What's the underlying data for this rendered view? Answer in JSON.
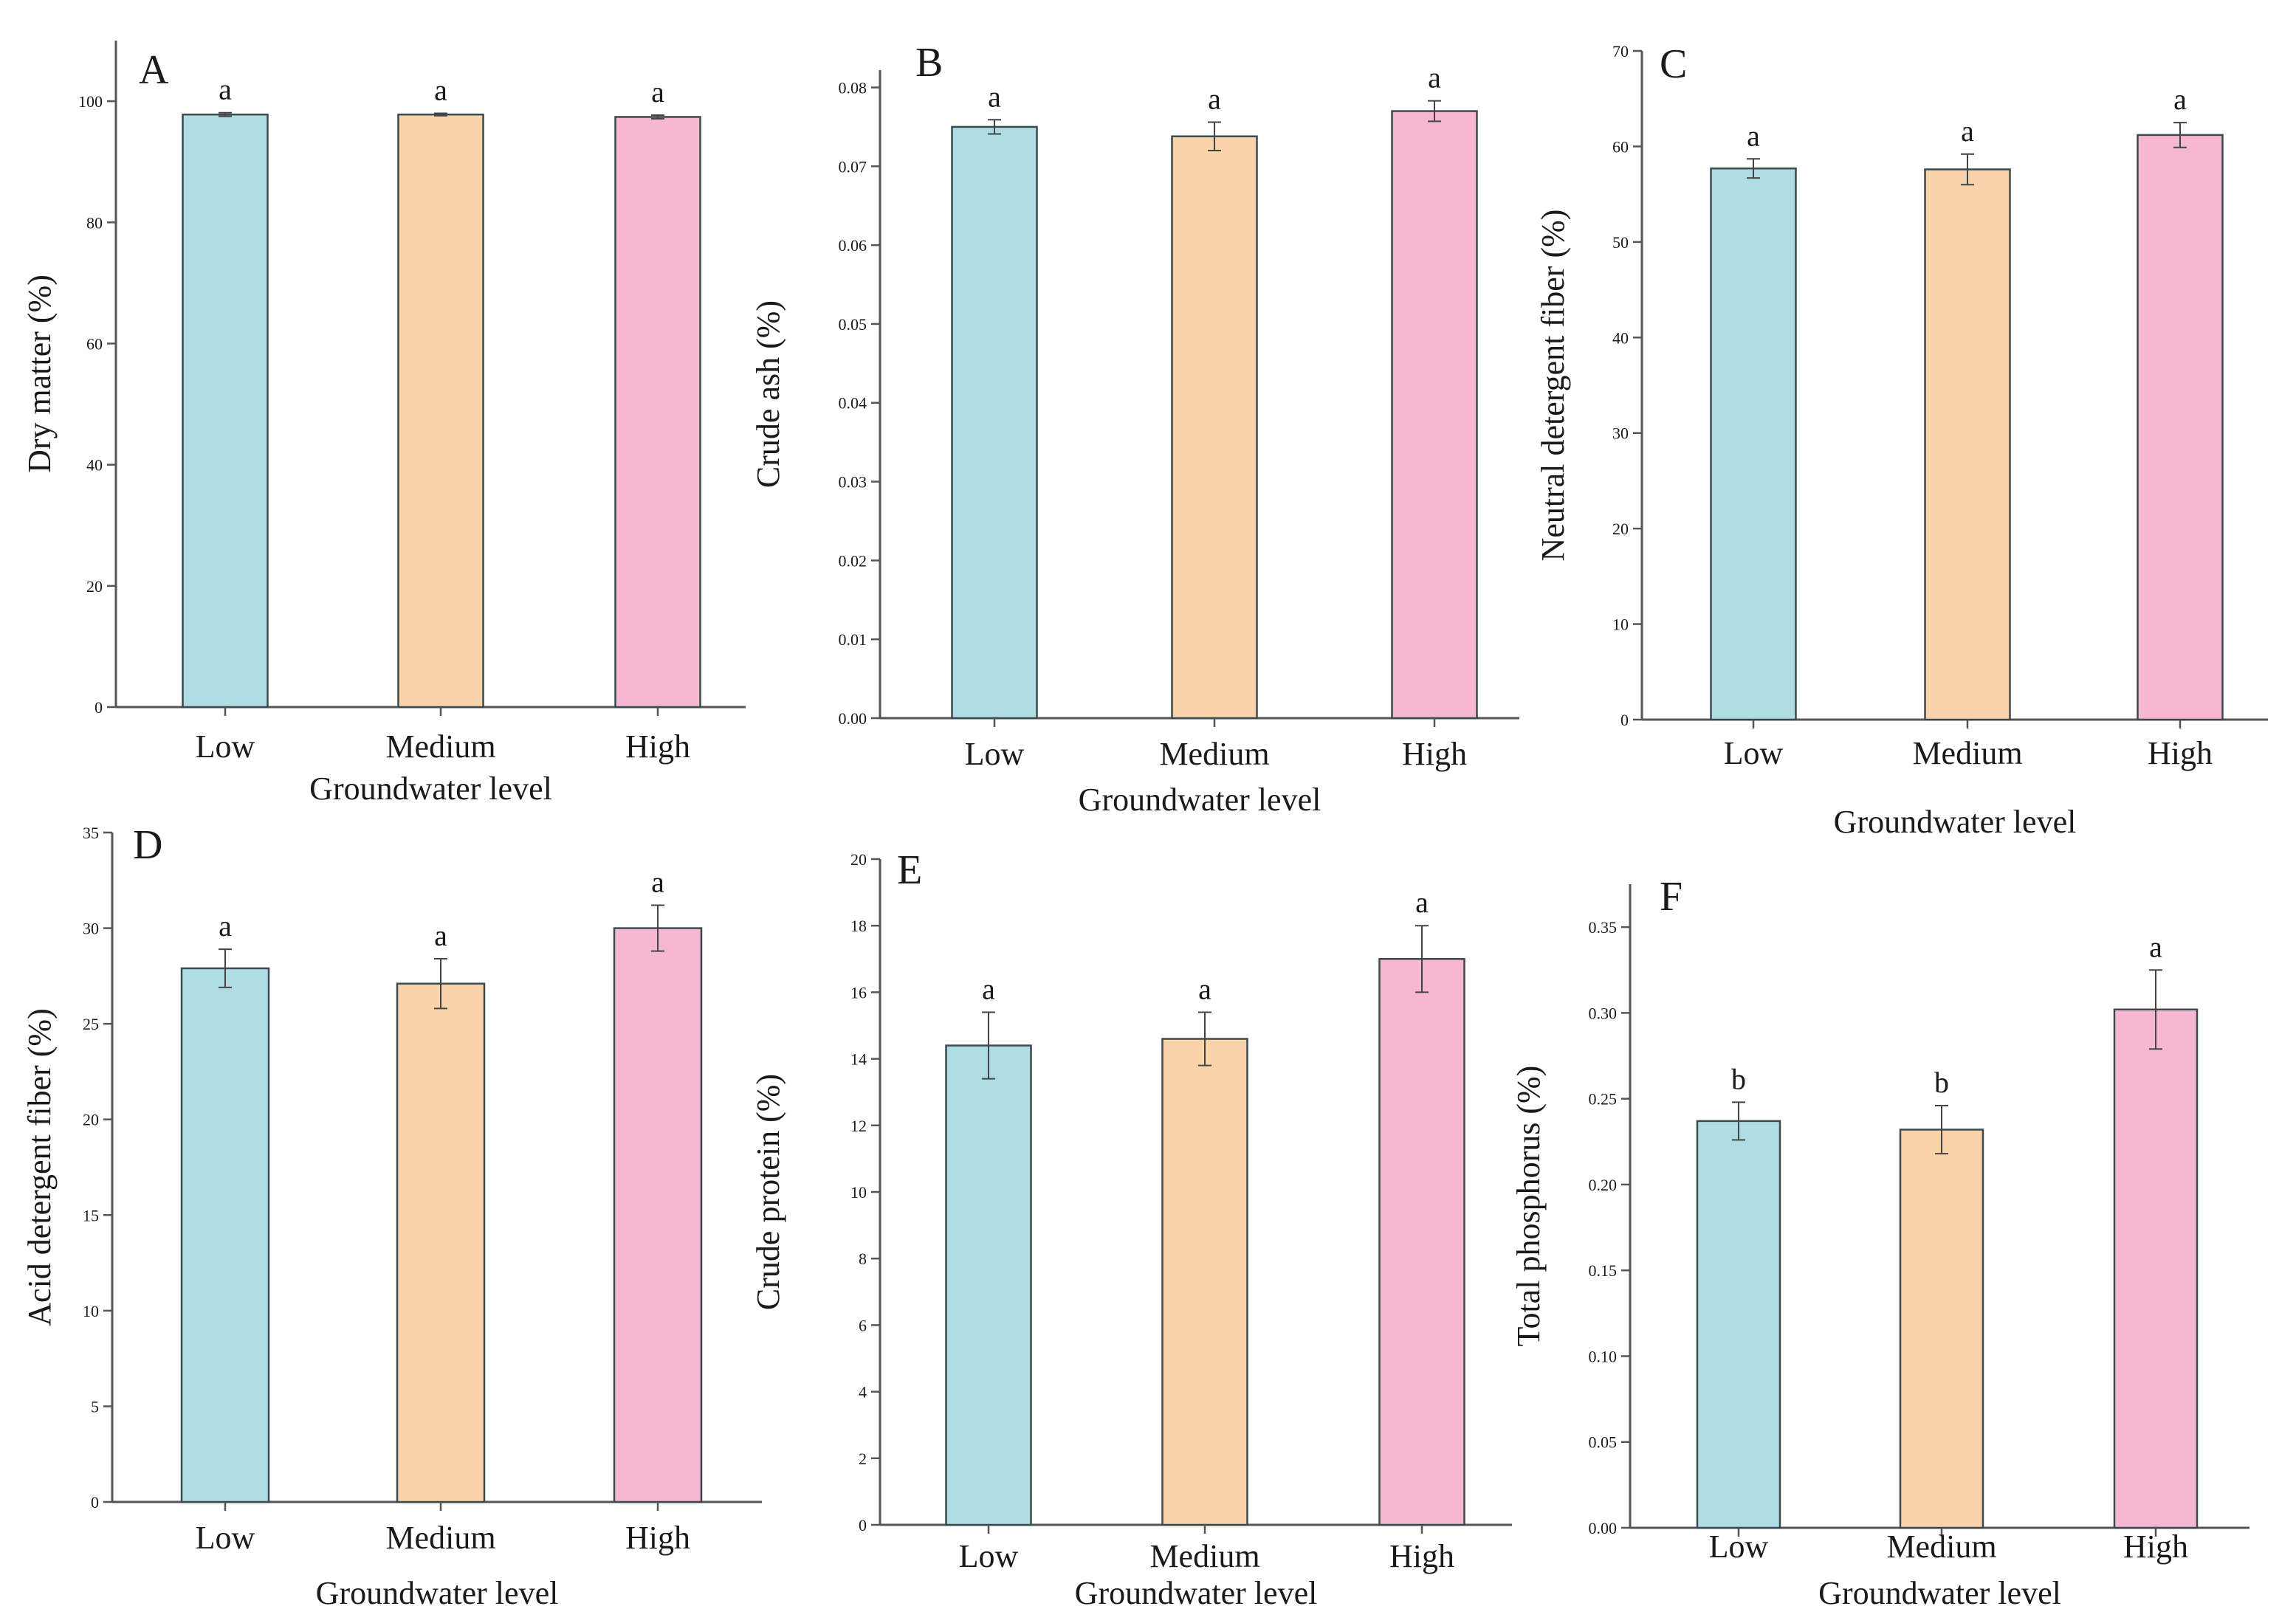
{
  "colors": {
    "low": "#b0dde3",
    "medium": "#f9d3a9",
    "high": "#f5b8d0",
    "bar_stroke": "#3b4a4e",
    "axis": "#555555"
  },
  "chart_data": [
    {
      "type": "bar",
      "panel": "A",
      "categories": [
        "Low",
        "Medium",
        "High"
      ],
      "values": [
        97.8,
        97.8,
        97.4
      ],
      "errors": [
        0.3,
        0.2,
        0.3
      ],
      "significance": [
        "a",
        "a",
        "a"
      ],
      "xlabel": "Groundwater level",
      "ylabel": "Dry matter (%)",
      "ylim": [
        0,
        110
      ],
      "yticks": [
        0,
        20,
        40,
        60,
        80,
        100
      ],
      "tick_labels": [
        "0",
        "20",
        "40",
        "60",
        "80",
        "100"
      ]
    },
    {
      "type": "bar",
      "panel": "B",
      "categories": [
        "Low",
        "Medium",
        "High"
      ],
      "values": [
        0.075,
        0.0738,
        0.077
      ],
      "errors": [
        0.0009,
        0.0018,
        0.0013
      ],
      "significance": [
        "a",
        "a",
        "a"
      ],
      "xlabel": "Groundwater level",
      "ylabel": "Crude ash (%)",
      "ylim": [
        0,
        0.0822
      ],
      "yticks": [
        0,
        0.01,
        0.02,
        0.03,
        0.04,
        0.05,
        0.06,
        0.07,
        0.08
      ],
      "tick_labels": [
        "0.00",
        "0.01",
        "0.02",
        "0.03",
        "0.04",
        "0.05",
        "0.06",
        "0.07",
        "0.08"
      ]
    },
    {
      "type": "bar",
      "panel": "C",
      "categories": [
        "Low",
        "Medium",
        "High"
      ],
      "values": [
        57.7,
        57.6,
        61.2
      ],
      "errors": [
        1.0,
        1.6,
        1.3
      ],
      "significance": [
        "a",
        "a",
        "a"
      ],
      "xlabel": "Groundwater level",
      "ylabel": "Neutral detergent fiber (%)",
      "ylim": [
        0,
        70
      ],
      "yticks": [
        0,
        10,
        20,
        30,
        40,
        50,
        60,
        70
      ],
      "tick_labels": [
        "0",
        "10",
        "20",
        "30",
        "40",
        "50",
        "60",
        "70"
      ]
    },
    {
      "type": "bar",
      "panel": "D",
      "categories": [
        "Low",
        "Medium",
        "High"
      ],
      "values": [
        27.9,
        27.1,
        30.0
      ],
      "errors": [
        1.0,
        1.3,
        1.2
      ],
      "significance": [
        "a",
        "a",
        "a"
      ],
      "xlabel": "Groundwater level",
      "ylabel": "Acid detergent fiber (%)",
      "ylim": [
        0,
        35
      ],
      "yticks": [
        0,
        5,
        10,
        15,
        20,
        25,
        30,
        35
      ],
      "tick_labels": [
        "0",
        "5",
        "10",
        "15",
        "20",
        "25",
        "30",
        "35"
      ]
    },
    {
      "type": "bar",
      "panel": "E",
      "categories": [
        "Low",
        "Medium",
        "High"
      ],
      "values": [
        14.4,
        14.6,
        17.0
      ],
      "errors": [
        1.0,
        0.8,
        1.0
      ],
      "significance": [
        "a",
        "a",
        "a"
      ],
      "xlabel": "Groundwater level",
      "ylabel": "Crude protein (%)",
      "ylim": [
        0,
        20
      ],
      "yticks": [
        0,
        2,
        4,
        6,
        8,
        10,
        12,
        14,
        16,
        18,
        20
      ],
      "tick_labels": [
        "0",
        "2",
        "4",
        "6",
        "8",
        "10",
        "12",
        "14",
        "16",
        "18",
        "20"
      ]
    },
    {
      "type": "bar",
      "panel": "F",
      "categories": [
        "Low",
        "Medium",
        "High"
      ],
      "values": [
        0.237,
        0.232,
        0.302
      ],
      "errors": [
        0.011,
        0.014,
        0.023
      ],
      "significance": [
        "b",
        "b",
        "a"
      ],
      "xlabel": "Groundwater level",
      "ylabel": "Total phosphorus (%)",
      "ylim": [
        0,
        0.375
      ],
      "yticks": [
        0,
        0.05,
        0.1,
        0.15,
        0.2,
        0.25,
        0.3,
        0.35
      ],
      "tick_labels": [
        "0.00",
        "0.05",
        "0.10",
        "0.15",
        "0.20",
        "0.25",
        "0.30",
        "0.35"
      ]
    }
  ]
}
